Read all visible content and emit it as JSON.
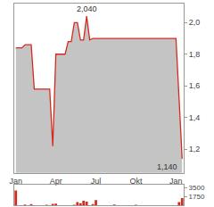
{
  "chart_data": [
    {
      "type": "line",
      "categories": [
        "Jan",
        null,
        null,
        null,
        null,
        null,
        null,
        null,
        null,
        null,
        null,
        null,
        null,
        "Apr",
        null,
        null,
        null,
        null,
        null,
        null,
        null,
        null,
        null,
        null,
        null,
        null,
        "Jul",
        null,
        null,
        null,
        null,
        null,
        null,
        null,
        null,
        null,
        null,
        null,
        null,
        "Okt",
        null,
        null,
        null,
        null,
        null,
        null,
        null,
        null,
        null,
        null,
        null,
        null,
        "Jan",
        null,
        null
      ],
      "values": [
        1.84,
        1.84,
        1.84,
        1.86,
        1.86,
        1.86,
        1.58,
        1.58,
        1.58,
        1.58,
        1.58,
        1.58,
        1.22,
        1.8,
        1.8,
        1.8,
        1.8,
        1.88,
        1.88,
        2.0,
        2.0,
        1.89,
        1.89,
        2.04,
        1.89,
        1.9,
        1.9,
        1.9,
        1.9,
        1.9,
        1.9,
        1.9,
        1.9,
        1.9,
        1.9,
        1.9,
        1.9,
        1.9,
        1.9,
        1.9,
        1.9,
        1.9,
        1.9,
        1.9,
        1.9,
        1.9,
        1.9,
        1.9,
        1.9,
        1.9,
        1.9,
        1.9,
        1.9,
        1.52,
        1.14
      ],
      "color": "#d42a1e",
      "ylim": [
        1.05,
        2.12
      ],
      "yticks": [
        {
          "value": 1.2,
          "label": "1,2"
        },
        {
          "value": 1.4,
          "label": "1,4"
        },
        {
          "value": 1.6,
          "label": "1,6"
        },
        {
          "value": 1.8,
          "label": "1,8"
        },
        {
          "value": 2.0,
          "label": "2,0"
        }
      ],
      "annotations": [
        {
          "text": "2,040",
          "value": 2.04
        },
        {
          "text": "1,140",
          "value": 1.14
        }
      ],
      "grid": false
    },
    {
      "type": "bar",
      "categories": [
        "Jan",
        null,
        null,
        null,
        null,
        null,
        null,
        null,
        null,
        null,
        null,
        null,
        null,
        "Apr",
        null,
        null,
        null,
        null,
        null,
        null,
        null,
        null,
        null,
        null,
        null,
        null,
        "Jul",
        null,
        null,
        null,
        null,
        null,
        null,
        null,
        null,
        null,
        null,
        null,
        null,
        "Okt",
        null,
        null,
        null,
        null,
        null,
        null,
        null,
        null,
        null,
        null,
        null,
        null,
        "Jan",
        null,
        null
      ],
      "values": [
        2900,
        0,
        0,
        150,
        0,
        200,
        0,
        0,
        0,
        0,
        100,
        0,
        250,
        300,
        0,
        0,
        0,
        0,
        0,
        100,
        600,
        400,
        900,
        700,
        0,
        200,
        1000,
        0,
        0,
        0,
        0,
        0,
        150,
        0,
        0,
        0,
        0,
        0,
        0,
        100,
        0,
        0,
        0,
        0,
        0,
        0,
        0,
        0,
        0,
        0,
        0,
        0,
        0,
        600,
        1400
      ],
      "color": "#d42a1e",
      "ylim": [
        0,
        4000
      ],
      "yticks": [
        1750,
        3500
      ],
      "tick_labels": "y",
      "grid": false
    }
  ]
}
